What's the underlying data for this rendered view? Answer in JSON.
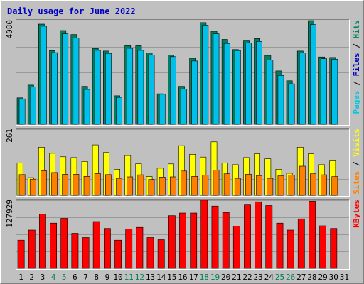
{
  "chart_data": {
    "type": "bar",
    "title": "Daily usage for June 2022",
    "categories": [
      "1",
      "2",
      "3",
      "4",
      "5",
      "6",
      "7",
      "8",
      "9",
      "10",
      "11",
      "12",
      "13",
      "14",
      "15",
      "16",
      "17",
      "18",
      "19",
      "20",
      "21",
      "22",
      "23",
      "24",
      "25",
      "26",
      "27",
      "28",
      "29",
      "30",
      "31"
    ],
    "weekend_days": [
      "4",
      "5",
      "11",
      "12",
      "18",
      "19",
      "25",
      "26"
    ],
    "panels": [
      {
        "id": "requests",
        "ymax_label": "4080",
        "ylim": [
          0,
          4080
        ],
        "right_labels": [
          "Pages",
          "Files",
          "Hits"
        ],
        "right_label_colors": [
          "#00c8e0",
          "#0000c0",
          "#008060"
        ],
        "series": [
          {
            "name": "Hits",
            "color": "#008060",
            "values": [
              1040,
              1540,
              3940,
              2900,
              3690,
              3530,
              1490,
              2980,
              2880,
              1120,
              3090,
              3090,
              2810,
              1200,
              2720,
              1490,
              2600,
              4000,
              3660,
              3340,
              2940,
              3280,
              3370,
              2710,
              2100,
              1710,
              2880,
              4080,
              2650,
              2630,
              null
            ]
          },
          {
            "name": "Files",
            "color": "#00bfe8",
            "values": [
              1000,
              1470,
              3860,
              2820,
              3560,
              3390,
              1370,
              2910,
              2790,
              1060,
              2990,
              2910,
              2730,
              1180,
              2660,
              1390,
              2490,
              3900,
              3560,
              3180,
              2900,
              3200,
              3260,
              2530,
              1920,
              1590,
              2810,
              3920,
              2580,
              2560,
              null
            ]
          }
        ]
      },
      {
        "id": "visits",
        "ymax_label": "261",
        "ylim": [
          0,
          261
        ],
        "right_labels": [
          "Sites",
          "Visits"
        ],
        "right_label_colors": [
          "#ff8000",
          "#ffff00"
        ],
        "series": [
          {
            "name": "Visits",
            "color": "#ffff00",
            "values": [
              128,
              70,
              190,
              166,
              152,
              149,
              134,
              199,
              169,
              103,
              157,
              125,
              74,
              107,
              124,
              196,
              162,
              151,
              211,
              128,
              121,
              149,
              164,
              144,
              103,
              87,
              190,
              164,
              121,
              136,
              null
            ]
          },
          {
            "name": "Sites",
            "color": "#ff8000",
            "values": [
              82,
              64,
              97,
              90,
              83,
              83,
              75,
              86,
              82,
              67,
              73,
              81,
              63,
              72,
              73,
              96,
              75,
              80,
              99,
              85,
              67,
              83,
              78,
              67,
              77,
              80,
              115,
              85,
              81,
              74,
              null
            ]
          }
        ]
      },
      {
        "id": "kbytes",
        "ymax_label": "127929",
        "ylim": [
          0,
          127929
        ],
        "right_labels": [
          "KBytes"
        ],
        "right_label_colors": [
          "#ff0000"
        ],
        "series": [
          {
            "name": "KBytes",
            "color": "#ff0000",
            "values": [
              53000,
              72000,
              102000,
              85000,
              94000,
              66000,
              58000,
              88000,
              75000,
              53000,
              74000,
              77000,
              58000,
              54000,
              99000,
              104000,
              104000,
              128000,
              117000,
              105000,
              79000,
              119000,
              125000,
              118000,
              85000,
              72000,
              93000,
              126000,
              80000,
              75000,
              null
            ]
          }
        ]
      }
    ]
  }
}
